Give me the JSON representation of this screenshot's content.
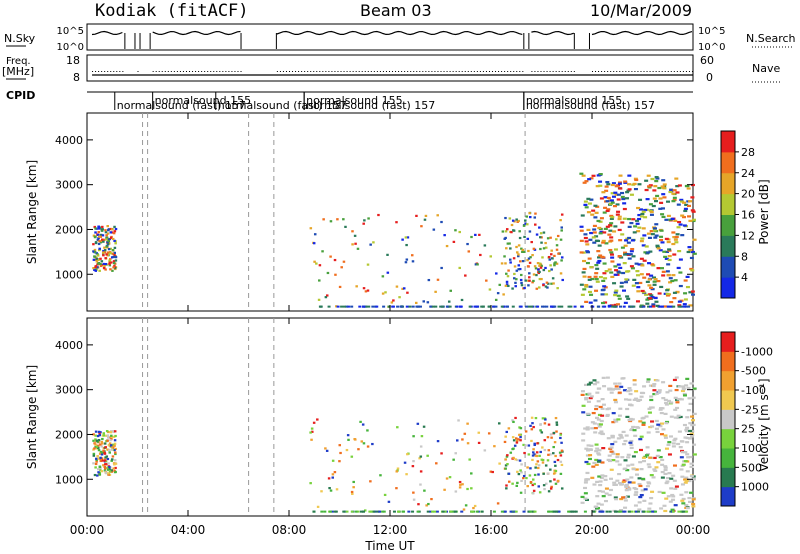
{
  "header": {
    "station": "Kodiak (fitACF)",
    "beam": "Beam 03",
    "date": "10/Mar/2009"
  },
  "noise_panel": {
    "left_label": "N.Sky",
    "left_ticks": [
      "10^5",
      "10^0"
    ],
    "right_label": "N.Search",
    "right_ticks": [
      "10^5",
      "10^0"
    ]
  },
  "freq_panel": {
    "left_label_1": "Freq.",
    "left_label_2": "[MHz]",
    "left_ticks": [
      "18",
      "8"
    ],
    "right_label": "Nave",
    "right_ticks": [
      "60",
      "0"
    ]
  },
  "cpid": {
    "label": "CPID",
    "entries": [
      {
        "text": "normalsound (fast)  157",
        "row": 2,
        "hour": 1.1
      },
      {
        "text": "normalsound 155",
        "row": 1,
        "hour": 2.6
      },
      {
        "text": "normalsound (fast)  157",
        "row": 2,
        "hour": 5.1
      },
      {
        "text": "normalsound 155",
        "row": 1,
        "hour": 8.6
      },
      {
        "text": "normalsound (fast)  157",
        "row": 2,
        "hour": 8.6
      },
      {
        "text": "normalsound 155",
        "row": 1,
        "hour": 17.3
      },
      {
        "text": "normalsound (fast)  157",
        "row": 2,
        "hour": 17.3
      }
    ]
  },
  "x_axis": {
    "title": "Time UT",
    "ticks": [
      "00:00",
      "04:00",
      "08:00",
      "12:00",
      "16:00",
      "20:00",
      "00:00"
    ]
  },
  "power_colorbar": {
    "label": "Power [dB]",
    "ticks": [
      "4",
      "8",
      "12",
      "16",
      "20",
      "24",
      "28"
    ],
    "colors": [
      "#1428e6",
      "#1e4bb4",
      "#2a7a5a",
      "#48a03c",
      "#b4c832",
      "#e6a528",
      "#f06e1e",
      "#e61e1e"
    ]
  },
  "velocity_colorbar": {
    "label": "Velocity [m s⁻¹]",
    "ticks": [
      "1000",
      "500",
      "100",
      "25",
      "-25",
      "-100",
      "-500",
      "-1000"
    ],
    "colors": [
      "#1e3cc8",
      "#287a50",
      "#46b43c",
      "#78d23c",
      "#c8c8c8",
      "#f0c850",
      "#f0a030",
      "#f06e1e",
      "#e61e1e"
    ]
  },
  "chart_data": [
    {
      "type": "heatmap",
      "name": "Power",
      "ylabel": "Slant Range [km]",
      "xlabel": "Time UT",
      "xlim": [
        0,
        24
      ],
      "ylim": [
        180,
        4600
      ],
      "y_ticks": [
        1000,
        2000,
        3000,
        4000
      ],
      "colorbar_range_db": [
        0,
        32
      ],
      "dashed_lines_hours": [
        2.2,
        2.4,
        6.4,
        7.4,
        17.35
      ],
      "scatter_blocks": [
        {
          "hours": [
            0.2,
            1.1
          ],
          "ranges": [
            1100,
            2100
          ],
          "level": "mixed"
        },
        {
          "hours": [
            8.8,
            16.5
          ],
          "ranges": [
            300,
            2400
          ],
          "level": "sparse"
        },
        {
          "hours": [
            16.5,
            18.8
          ],
          "ranges": [
            700,
            2400
          ],
          "level": "mixed"
        },
        {
          "hours": [
            19.5,
            24.0
          ],
          "ranges": [
            300,
            3300
          ],
          "level": "dense"
        }
      ]
    },
    {
      "type": "heatmap",
      "name": "Velocity",
      "ylabel": "Slant Range [km]",
      "xlabel": "Time UT",
      "xlim": [
        0,
        24
      ],
      "ylim": [
        180,
        4600
      ],
      "y_ticks": [
        1000,
        2000,
        3000,
        4000
      ],
      "colorbar_range": [
        -1000,
        1000
      ],
      "dashed_lines_hours": [
        2.2,
        2.4,
        6.4,
        7.4,
        17.35
      ],
      "scatter_blocks": [
        {
          "hours": [
            0.2,
            1.1
          ],
          "ranges": [
            1100,
            2100
          ],
          "level": "mixed"
        },
        {
          "hours": [
            8.8,
            16.5
          ],
          "ranges": [
            300,
            2400
          ],
          "level": "sparse"
        },
        {
          "hours": [
            16.5,
            18.8
          ],
          "ranges": [
            700,
            2400
          ],
          "level": "mixed"
        },
        {
          "hours": [
            19.5,
            24.0
          ],
          "ranges": [
            300,
            3300
          ],
          "level": "dense"
        }
      ]
    }
  ]
}
